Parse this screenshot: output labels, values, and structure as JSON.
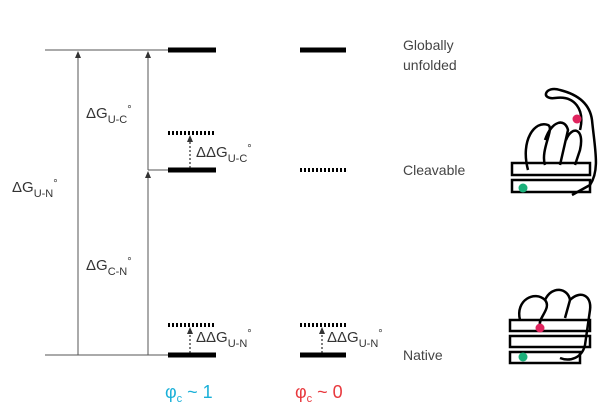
{
  "states": {
    "unfolded": [
      "Globally",
      "unfolded"
    ],
    "cleavable": "Cleavable",
    "native": "Native"
  },
  "energies": {
    "dG_UN": {
      "symbol": "ΔG",
      "subscript": "U-N",
      "superscript": "°"
    },
    "dG_UC": {
      "symbol": "ΔG",
      "subscript": "U-C",
      "superscript": "°"
    },
    "dG_CN": {
      "symbol": "ΔG",
      "subscript": "C-N",
      "superscript": "°"
    },
    "ddG_UC": {
      "symbol": "ΔΔG",
      "subscript": "U-C",
      "superscript": "°"
    },
    "ddG_UN_1": {
      "symbol": "ΔΔG",
      "subscript": "U-N",
      "superscript": "°"
    },
    "ddG_UN_0": {
      "symbol": "ΔΔG",
      "subscript": "U-N",
      "superscript": "°"
    }
  },
  "columns": [
    {
      "symbol": "φ",
      "subscript": "c",
      "relation": " ~ 1"
    },
    {
      "symbol": "φ",
      "subscript": "c",
      "relation": " ~ 0"
    }
  ]
}
